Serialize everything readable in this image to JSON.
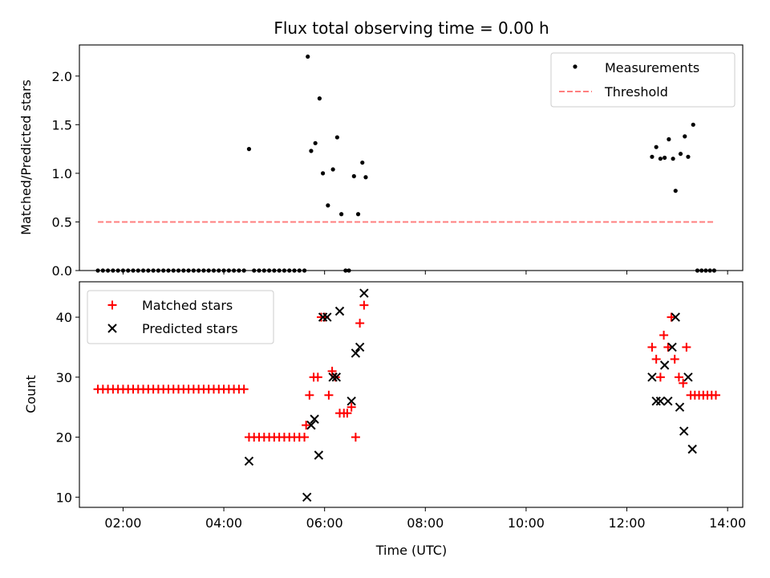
{
  "title": "Flux total observing time = 0.00 h",
  "chart_data": [
    {
      "type": "scatter",
      "ylabel": "Matched/Predicted stars",
      "ylim": [
        0,
        2.32
      ],
      "yticks": [
        "0.0",
        "0.5",
        "1.0",
        "1.5",
        "2.0"
      ],
      "ytick_values": [
        0,
        0.5,
        1.0,
        1.5,
        2.0
      ],
      "xlim": [
        "01:08",
        "14:18"
      ],
      "legend_position": "upper right",
      "series": [
        {
          "name": "Measurements",
          "marker": "dot",
          "color": "#000000",
          "points": [
            [
              "01:30",
              0
            ],
            [
              "01:36",
              0
            ],
            [
              "01:42",
              0
            ],
            [
              "01:48",
              0
            ],
            [
              "01:54",
              0
            ],
            [
              "02:00",
              0
            ],
            [
              "02:06",
              0
            ],
            [
              "02:12",
              0
            ],
            [
              "02:18",
              0
            ],
            [
              "02:24",
              0
            ],
            [
              "02:30",
              0
            ],
            [
              "02:36",
              0
            ],
            [
              "02:42",
              0
            ],
            [
              "02:48",
              0
            ],
            [
              "02:54",
              0
            ],
            [
              "03:00",
              0
            ],
            [
              "03:06",
              0
            ],
            [
              "03:12",
              0
            ],
            [
              "03:18",
              0
            ],
            [
              "03:24",
              0
            ],
            [
              "03:30",
              0
            ],
            [
              "03:36",
              0
            ],
            [
              "03:42",
              0
            ],
            [
              "03:48",
              0
            ],
            [
              "03:54",
              0
            ],
            [
              "04:00",
              0
            ],
            [
              "04:06",
              0
            ],
            [
              "04:12",
              0
            ],
            [
              "04:18",
              0
            ],
            [
              "04:24",
              0
            ],
            [
              "04:30",
              1.25
            ],
            [
              "04:36",
              0
            ],
            [
              "04:42",
              0
            ],
            [
              "04:48",
              0
            ],
            [
              "04:54",
              0
            ],
            [
              "05:00",
              0
            ],
            [
              "05:06",
              0
            ],
            [
              "05:12",
              0
            ],
            [
              "05:18",
              0
            ],
            [
              "05:24",
              0
            ],
            [
              "05:30",
              0
            ],
            [
              "05:36",
              0
            ],
            [
              "05:40",
              2.2
            ],
            [
              "05:44",
              1.23
            ],
            [
              "05:49",
              1.31
            ],
            [
              "05:54",
              1.77
            ],
            [
              "05:58",
              1.0
            ],
            [
              "06:04",
              0.67
            ],
            [
              "06:10",
              1.04
            ],
            [
              "06:15",
              1.37
            ],
            [
              "06:20",
              0.58
            ],
            [
              "06:25",
              0
            ],
            [
              "06:29",
              0
            ],
            [
              "06:35",
              0.97
            ],
            [
              "06:40",
              0.58
            ],
            [
              "06:45",
              1.11
            ],
            [
              "06:49",
              0.96
            ],
            [
              "12:30",
              1.17
            ],
            [
              "12:35",
              1.27
            ],
            [
              "12:40",
              1.15
            ],
            [
              "12:45",
              1.16
            ],
            [
              "12:50",
              1.35
            ],
            [
              "12:55",
              1.15
            ],
            [
              "12:58",
              0.82
            ],
            [
              "13:04",
              1.2
            ],
            [
              "13:09",
              1.38
            ],
            [
              "13:13",
              1.17
            ],
            [
              "13:19",
              1.5
            ],
            [
              "13:24",
              0
            ],
            [
              "13:29",
              0
            ],
            [
              "13:34",
              0
            ],
            [
              "13:39",
              0
            ],
            [
              "13:44",
              0
            ]
          ]
        },
        {
          "name": "Threshold",
          "marker": "dashed-line",
          "color": "#ff7f7f",
          "points": [
            [
              "01:30",
              0.5
            ],
            [
              "13:45",
              0.5
            ]
          ]
        }
      ]
    },
    {
      "type": "scatter",
      "ylabel": "Count",
      "xlabel": "Time (UTC)",
      "ylim": [
        8.3,
        45.9
      ],
      "yticks": [
        "10",
        "20",
        "30",
        "40"
      ],
      "ytick_values": [
        10,
        20,
        30,
        40
      ],
      "xlim": [
        "01:08",
        "14:18"
      ],
      "xticks": [
        "02:00",
        "04:00",
        "06:00",
        "08:00",
        "10:00",
        "12:00",
        "14:00"
      ],
      "legend_position": "upper left",
      "series": [
        {
          "name": "Matched stars",
          "marker": "plus",
          "color": "#ff0000",
          "points": [
            [
              "01:30",
              28
            ],
            [
              "01:36",
              28
            ],
            [
              "01:42",
              28
            ],
            [
              "01:48",
              28
            ],
            [
              "01:54",
              28
            ],
            [
              "02:00",
              28
            ],
            [
              "02:06",
              28
            ],
            [
              "02:12",
              28
            ],
            [
              "02:18",
              28
            ],
            [
              "02:24",
              28
            ],
            [
              "02:30",
              28
            ],
            [
              "02:36",
              28
            ],
            [
              "02:42",
              28
            ],
            [
              "02:48",
              28
            ],
            [
              "02:54",
              28
            ],
            [
              "03:00",
              28
            ],
            [
              "03:06",
              28
            ],
            [
              "03:12",
              28
            ],
            [
              "03:18",
              28
            ],
            [
              "03:24",
              28
            ],
            [
              "03:30",
              28
            ],
            [
              "03:36",
              28
            ],
            [
              "03:42",
              28
            ],
            [
              "03:48",
              28
            ],
            [
              "03:54",
              28
            ],
            [
              "04:00",
              28
            ],
            [
              "04:06",
              28
            ],
            [
              "04:12",
              28
            ],
            [
              "04:18",
              28
            ],
            [
              "04:24",
              28
            ],
            [
              "04:30",
              20
            ],
            [
              "04:36",
              20
            ],
            [
              "04:42",
              20
            ],
            [
              "04:48",
              20
            ],
            [
              "04:54",
              20
            ],
            [
              "05:00",
              20
            ],
            [
              "05:06",
              20
            ],
            [
              "05:12",
              20
            ],
            [
              "05:18",
              20
            ],
            [
              "05:24",
              20
            ],
            [
              "05:30",
              20
            ],
            [
              "05:36",
              20
            ],
            [
              "05:38",
              22
            ],
            [
              "05:42",
              27
            ],
            [
              "05:47",
              30
            ],
            [
              "05:52",
              30
            ],
            [
              "05:56",
              40
            ],
            [
              "06:00",
              40
            ],
            [
              "06:05",
              27
            ],
            [
              "06:09",
              31
            ],
            [
              "06:13",
              30
            ],
            [
              "06:18",
              24
            ],
            [
              "06:23",
              24
            ],
            [
              "06:27",
              24
            ],
            [
              "06:32",
              25
            ],
            [
              "06:37",
              20
            ],
            [
              "06:42",
              39
            ],
            [
              "06:47",
              42
            ],
            [
              "12:30",
              35
            ],
            [
              "12:35",
              33
            ],
            [
              "12:40",
              30
            ],
            [
              "12:44",
              37
            ],
            [
              "12:49",
              35
            ],
            [
              "12:53",
              40
            ],
            [
              "12:57",
              33
            ],
            [
              "13:02",
              30
            ],
            [
              "13:07",
              29
            ],
            [
              "13:11",
              35
            ],
            [
              "13:16",
              27
            ],
            [
              "13:21",
              27
            ],
            [
              "13:26",
              27
            ],
            [
              "13:31",
              27
            ],
            [
              "13:36",
              27
            ],
            [
              "13:41",
              27
            ],
            [
              "13:46",
              27
            ]
          ]
        },
        {
          "name": "Predicted stars",
          "marker": "cross",
          "color": "#000000",
          "points": [
            [
              "04:30",
              16
            ],
            [
              "05:39",
              10
            ],
            [
              "05:44",
              22
            ],
            [
              "05:48",
              23
            ],
            [
              "05:53",
              17
            ],
            [
              "05:58",
              40
            ],
            [
              "06:03",
              40
            ],
            [
              "06:10",
              30
            ],
            [
              "06:14",
              30
            ],
            [
              "06:18",
              41
            ],
            [
              "06:32",
              26
            ],
            [
              "06:37",
              34
            ],
            [
              "06:42",
              35
            ],
            [
              "06:47",
              44
            ],
            [
              "12:30",
              30
            ],
            [
              "12:35",
              26
            ],
            [
              "12:40",
              26
            ],
            [
              "12:45",
              32
            ],
            [
              "12:49",
              26
            ],
            [
              "12:54",
              35
            ],
            [
              "12:58",
              40
            ],
            [
              "13:03",
              25
            ],
            [
              "13:08",
              21
            ],
            [
              "13:13",
              30
            ],
            [
              "13:18",
              18
            ]
          ]
        }
      ]
    }
  ]
}
